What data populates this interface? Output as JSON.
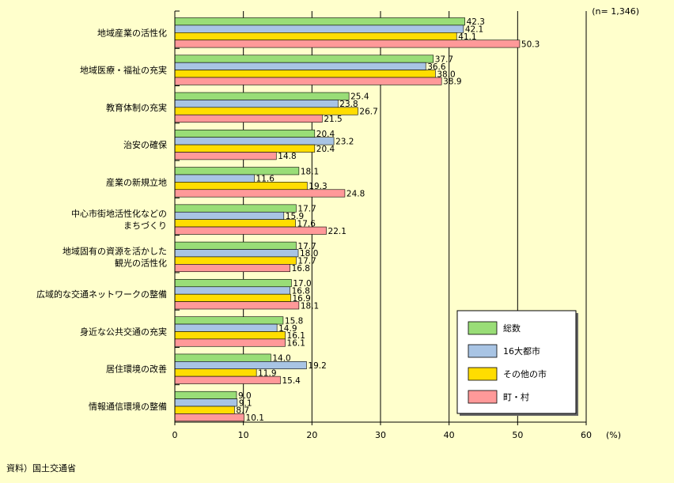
{
  "chart_data": {
    "type": "bar",
    "orientation": "horizontal",
    "note": "(n= 1,346)",
    "unit": "(%)",
    "source": "資料）国土交通省",
    "xlim": [
      0,
      60
    ],
    "xticks": [
      0,
      10,
      20,
      30,
      40,
      50,
      60
    ],
    "grid": true,
    "legend_placement": "bottom-right",
    "categories": [
      [
        "地域産業の活性化"
      ],
      [
        "地域医療・福祉の充実"
      ],
      [
        "教育体制の充実"
      ],
      [
        "治安の確保"
      ],
      [
        "産業の新規立地"
      ],
      [
        "中心市街地活性化などの",
        "まちづくり"
      ],
      [
        "地域固有の資源を活かした",
        "観光の活性化"
      ],
      [
        "広域的な交通ネットワークの整備"
      ],
      [
        "身近な公共交通の充実"
      ],
      [
        "居住環境の改善"
      ],
      [
        "情報通信環境の整備"
      ]
    ],
    "series": [
      {
        "name": "総数",
        "color": "#99dd77",
        "values": [
          42.3,
          37.7,
          25.4,
          20.4,
          18.1,
          17.7,
          17.7,
          17.0,
          15.8,
          14.0,
          9.0
        ]
      },
      {
        "name": "16大都市",
        "color": "#a8c4e4",
        "values": [
          42.1,
          36.6,
          23.8,
          23.2,
          11.6,
          15.9,
          18.0,
          16.8,
          14.9,
          19.2,
          9.1
        ]
      },
      {
        "name": "その他の市",
        "color": "#ffdd00",
        "values": [
          41.1,
          38.0,
          26.7,
          20.4,
          19.3,
          17.6,
          17.7,
          16.9,
          16.1,
          11.9,
          8.7
        ]
      },
      {
        "name": "町・村",
        "color": "#ff9999",
        "values": [
          50.3,
          38.9,
          21.5,
          14.8,
          24.8,
          22.1,
          16.8,
          18.1,
          16.1,
          15.4,
          10.1
        ]
      }
    ]
  }
}
